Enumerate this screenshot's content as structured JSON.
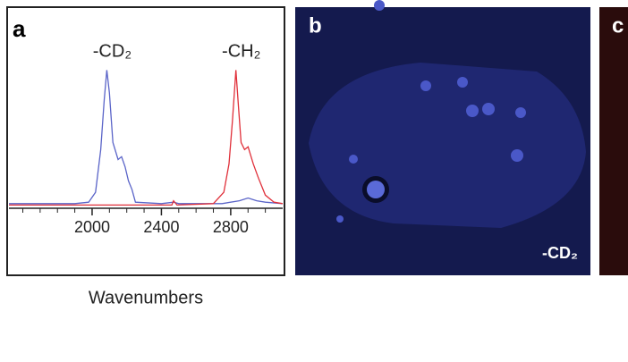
{
  "chart_data": {
    "type": "line",
    "panel_label": "a",
    "x_label": "Wavenumbers",
    "xlim": [
      1520,
      3100
    ],
    "xticks": [
      2000,
      2400,
      2800
    ],
    "xminorticks": [
      1600,
      1700,
      1800,
      1900,
      2100,
      2200,
      2300,
      2500,
      2600,
      2700,
      2900,
      3000
    ],
    "ylim": [
      0,
      100
    ],
    "series": [
      {
        "name": "-CD₂",
        "color": "#5a64c8",
        "x": [
          1520,
          1900,
          1980,
          2020,
          2050,
          2070,
          2085,
          2100,
          2120,
          2150,
          2170,
          2190,
          2210,
          2230,
          2250,
          2400,
          2470,
          2500,
          2750,
          2850,
          2900,
          2950,
          3000,
          3100
        ],
        "values": [
          2,
          2,
          3,
          10,
          40,
          75,
          96,
          80,
          45,
          33,
          35,
          28,
          18,
          12,
          3,
          2,
          3,
          2,
          2,
          4,
          6,
          4,
          3,
          2
        ]
      },
      {
        "name": "-CH₂",
        "color": "#e0303a",
        "x": [
          1520,
          2050,
          2460,
          2470,
          2490,
          2700,
          2760,
          2790,
          2810,
          2830,
          2845,
          2860,
          2880,
          2900,
          2930,
          2960,
          3000,
          3050,
          3100
        ],
        "values": [
          1,
          1,
          1,
          4,
          1,
          2,
          10,
          30,
          60,
          96,
          70,
          45,
          40,
          42,
          30,
          20,
          8,
          3,
          2
        ]
      }
    ]
  },
  "panels": [
    {
      "label": "b",
      "annotation": "-CD₂"
    },
    {
      "label": "c"
    }
  ]
}
